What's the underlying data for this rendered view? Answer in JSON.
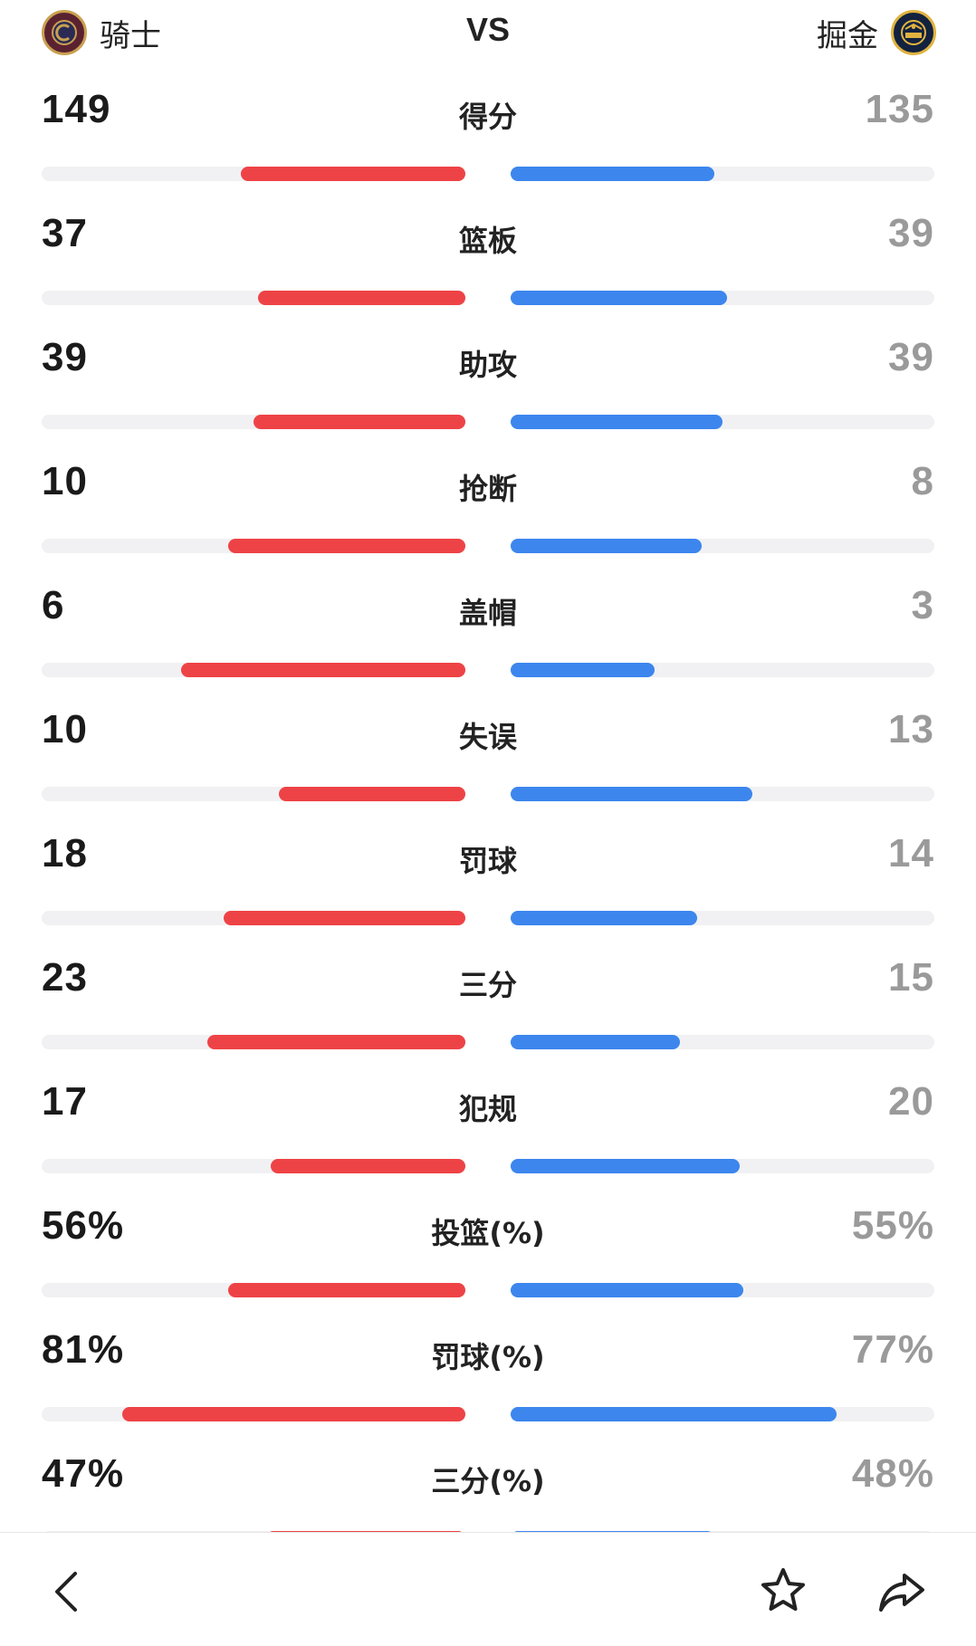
{
  "header": {
    "home_team": "骑士",
    "away_team": "掘金",
    "vs_label": "VS",
    "home_logo_icon": "cavaliers-logo-icon",
    "away_logo_icon": "nuggets-logo-icon"
  },
  "colors": {
    "home_bar": "#ee4346",
    "away_bar": "#3c86ee",
    "track": "#f1f1f3"
  },
  "stats": [
    {
      "label": "得分",
      "home": "149",
      "away": "135",
      "home_fraction": 0.53,
      "away_fraction": 0.48
    },
    {
      "label": "篮板",
      "home": "37",
      "away": "39",
      "home_fraction": 0.49,
      "away_fraction": 0.51
    },
    {
      "label": "助攻",
      "home": "39",
      "away": "39",
      "home_fraction": 0.5,
      "away_fraction": 0.5
    },
    {
      "label": "抢断",
      "home": "10",
      "away": "8",
      "home_fraction": 0.56,
      "away_fraction": 0.45
    },
    {
      "label": "盖帽",
      "home": "6",
      "away": "3",
      "home_fraction": 0.67,
      "away_fraction": 0.34
    },
    {
      "label": "失误",
      "home": "10",
      "away": "13",
      "home_fraction": 0.44,
      "away_fraction": 0.57
    },
    {
      "label": "罚球",
      "home": "18",
      "away": "14",
      "home_fraction": 0.57,
      "away_fraction": 0.44
    },
    {
      "label": "三分",
      "home": "23",
      "away": "15",
      "home_fraction": 0.61,
      "away_fraction": 0.4
    },
    {
      "label": "犯规",
      "home": "17",
      "away": "20",
      "home_fraction": 0.46,
      "away_fraction": 0.54
    },
    {
      "label": "投篮(%)",
      "home": "56%",
      "away": "55%",
      "home_fraction": 0.56,
      "away_fraction": 0.55
    },
    {
      "label": "罚球(%)",
      "home": "81%",
      "away": "77%",
      "home_fraction": 0.81,
      "away_fraction": 0.77
    },
    {
      "label": "三分(%)",
      "home": "47%",
      "away": "48%",
      "home_fraction": 0.47,
      "away_fraction": 0.48
    }
  ],
  "bottom_bar": {
    "back_icon": "back-arrow-icon",
    "favorite_icon": "star-icon",
    "share_icon": "share-icon"
  }
}
